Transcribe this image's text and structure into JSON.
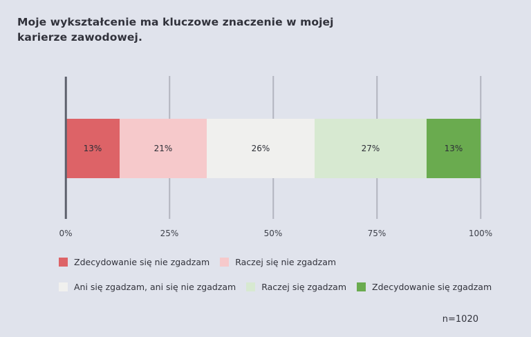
{
  "page": {
    "background_color": "#e0e3ec"
  },
  "chart_data": {
    "type": "bar",
    "orientation": "horizontal",
    "stacked": true,
    "title": "Moje wykształcenie ma kluczowe znaczenie w mojej karierze zawodowej.",
    "categories": [
      "Zdecydowanie się nie zgadzam",
      "Raczej się nie zgadzam",
      "Ani się zgadzam, ani się nie zgadzam",
      "Raczej się zgadzam",
      "Zdecydowanie się zgadzam"
    ],
    "values": [
      13,
      21,
      26,
      27,
      13
    ],
    "value_labels": [
      "13%",
      "21%",
      "26%",
      "27%",
      "13%"
    ],
    "colors": [
      "#dd6367",
      "#f6c9cb",
      "#f0f0ee",
      "#d7e9d1",
      "#6aab4f"
    ],
    "x_ticks": [
      "0%",
      "25%",
      "50%",
      "75%",
      "100%"
    ],
    "x_tick_values": [
      0,
      25,
      50,
      75,
      100
    ],
    "xlim": [
      0,
      100
    ],
    "grid": true,
    "legend_position": "bottom",
    "sample_size": "n=1020"
  },
  "legend": {
    "rows": [
      [
        {
          "label": "Zdecydowanie się nie zgadzam",
          "color": "#dd6367"
        },
        {
          "label": "Raczej się nie zgadzam",
          "color": "#f6c9cb"
        }
      ],
      [
        {
          "label": "Ani się zgadzam, ani się nie zgadzam",
          "color": "#f0f0ee"
        },
        {
          "label": "Raczej się zgadzam",
          "color": "#d7e9d1"
        },
        {
          "label": "Zdecydowanie się zgadzam",
          "color": "#6aab4f"
        }
      ]
    ]
  }
}
